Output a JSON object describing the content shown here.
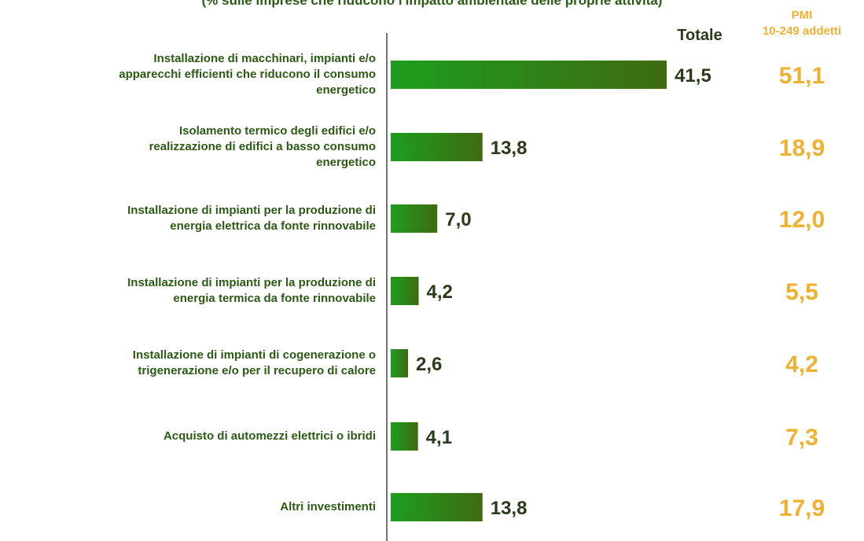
{
  "chart_data": {
    "type": "bar",
    "orientation": "horizontal",
    "subtitle": "(% sulle imprese che riducono l'impatto ambientale delle proprie attività)",
    "categories": [
      "Installazione di macchinari, impianti e/o\napparecchi efficienti che riducono il consumo\nenergetico",
      "Isolamento termico degli edifici e/o\nrealizzazione di edifici a basso consumo\nenergetico",
      "Installazione di impianti per la produzione di\nenergia elettrica da fonte rinnovabile",
      "Installazione di impianti per la produzione di\nenergia termica da fonte rinnovabile",
      "Installazione di impianti di cogenerazione o\ntrigenerazione e/o per il recupero di calore",
      "Acquisto di automezzi elettrici o ibridi",
      "Altri investimenti"
    ],
    "xlim": [
      0,
      50
    ],
    "series": [
      {
        "name": "Totale",
        "color": "#1e9e1e",
        "values": [
          41.5,
          13.8,
          7.0,
          4.2,
          2.6,
          4.1,
          13.8
        ],
        "value_labels": [
          "41,5",
          "13,8",
          "7,0",
          "4,2",
          "2,6",
          "4,1",
          "13,8"
        ]
      },
      {
        "name": "PMI\n10-249 addetti",
        "color": "#f0b030",
        "values": [
          51.1,
          18.9,
          12.0,
          5.5,
          4.2,
          7.3,
          17.9
        ],
        "value_labels": [
          "51,1",
          "18,9",
          "12,0",
          "5,5",
          "4,2",
          "7,3",
          "17,9"
        ]
      }
    ]
  }
}
